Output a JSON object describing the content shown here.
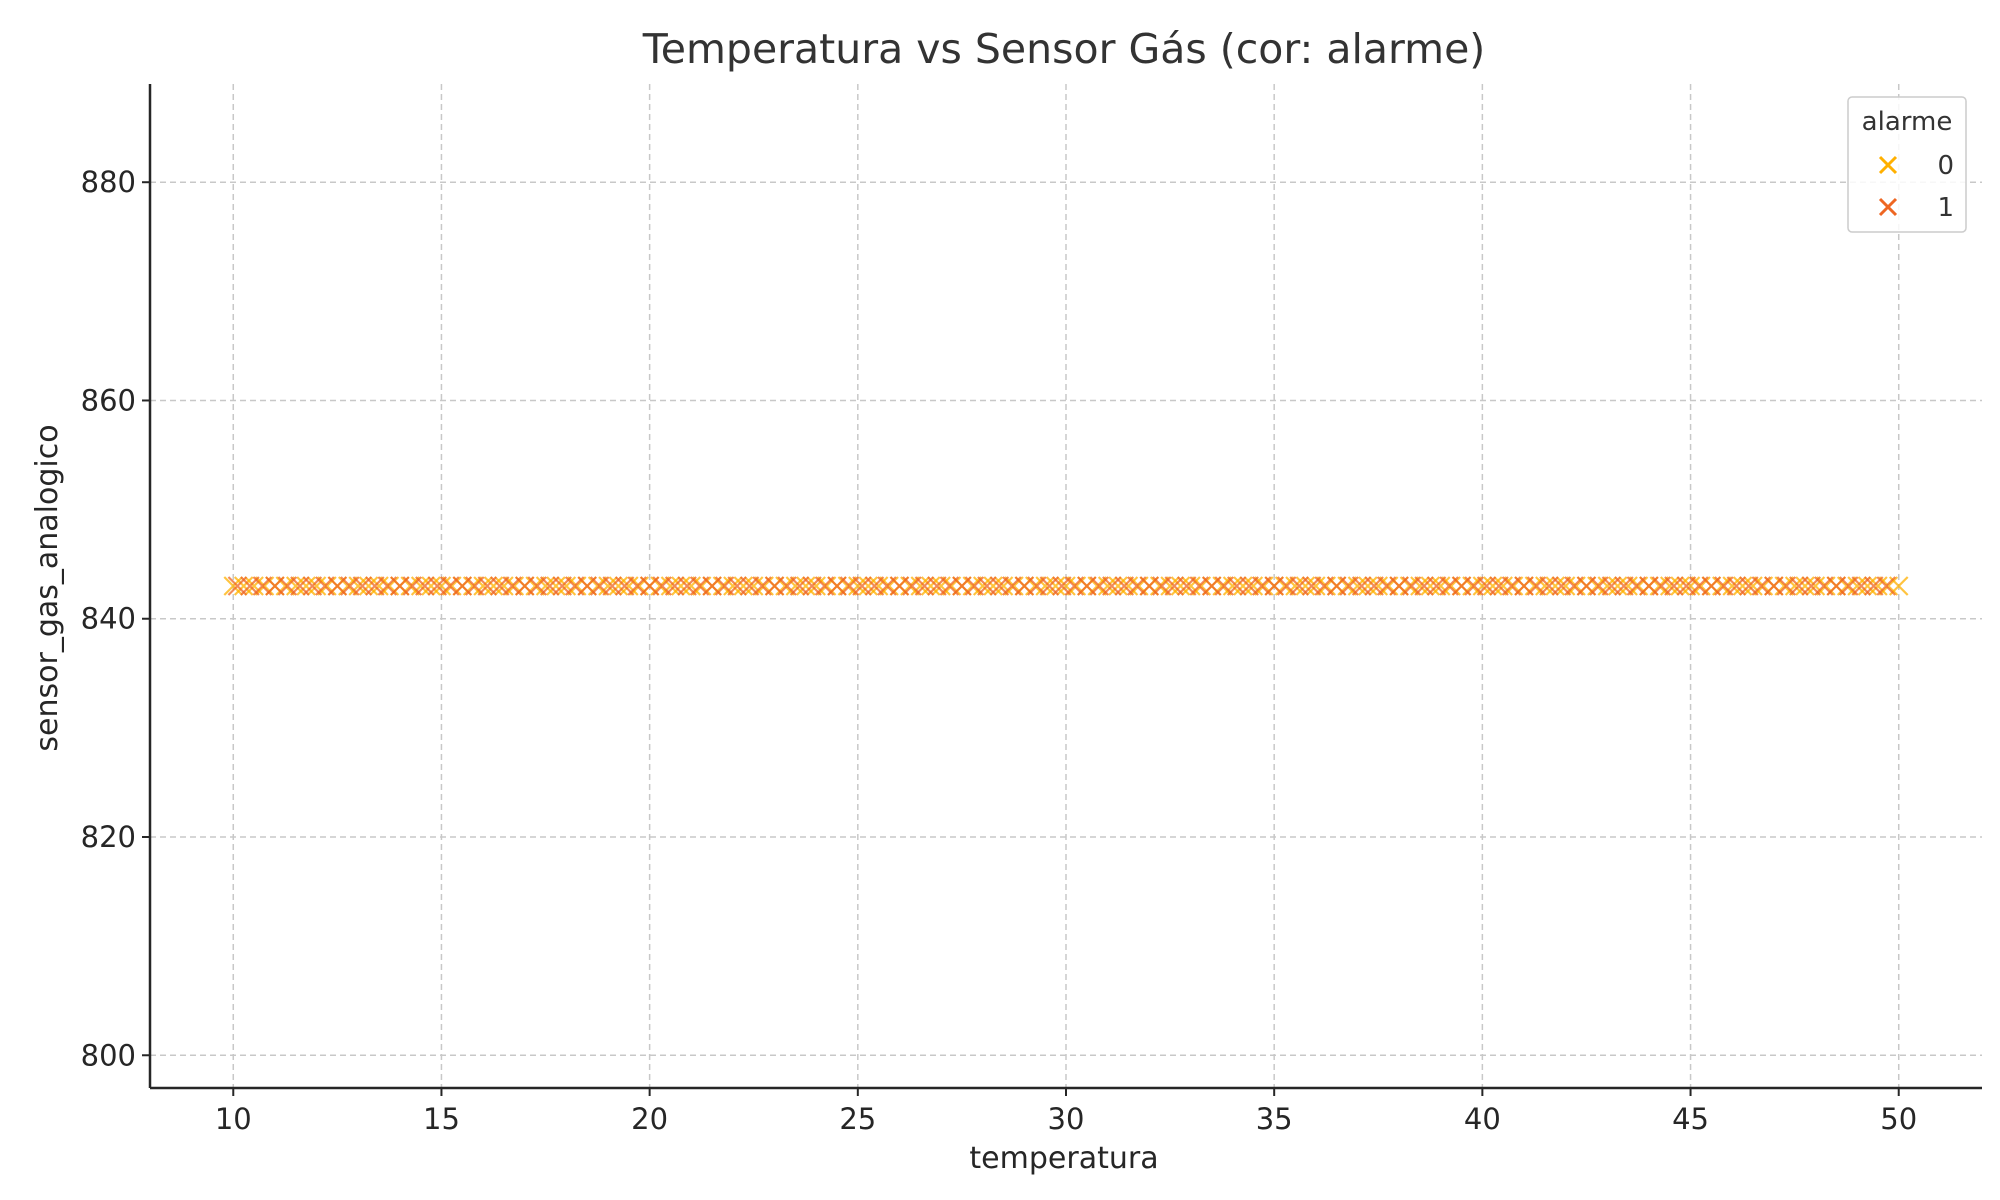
{
  "chart_data": {
    "type": "scatter",
    "title": "Temperatura vs Sensor Gás (cor: alarme)",
    "xlabel": "temperatura",
    "ylabel": "sensor_gas_analogico",
    "xlim": [
      8,
      52
    ],
    "ylim": [
      797,
      889
    ],
    "xticks": [
      10,
      15,
      20,
      25,
      30,
      35,
      40,
      45,
      50
    ],
    "yticks": [
      800,
      820,
      840,
      860,
      880
    ],
    "grid": true,
    "marker": "x",
    "legend": {
      "title": "alarme",
      "placement": "top-right",
      "entries": [
        {
          "label": "0",
          "color": "#ffb000"
        },
        {
          "label": "1",
          "color": "#ee6622"
        }
      ]
    },
    "series": [
      {
        "name": "0",
        "color": "#ffb000",
        "y_constant": 843,
        "x_range": [
          10,
          50
        ],
        "x_step": 0.25
      },
      {
        "name": "1",
        "color": "#ee6622",
        "y_constant": 843,
        "x_range": [
          10.1,
          49.9
        ],
        "x_step": 0.3
      }
    ]
  }
}
